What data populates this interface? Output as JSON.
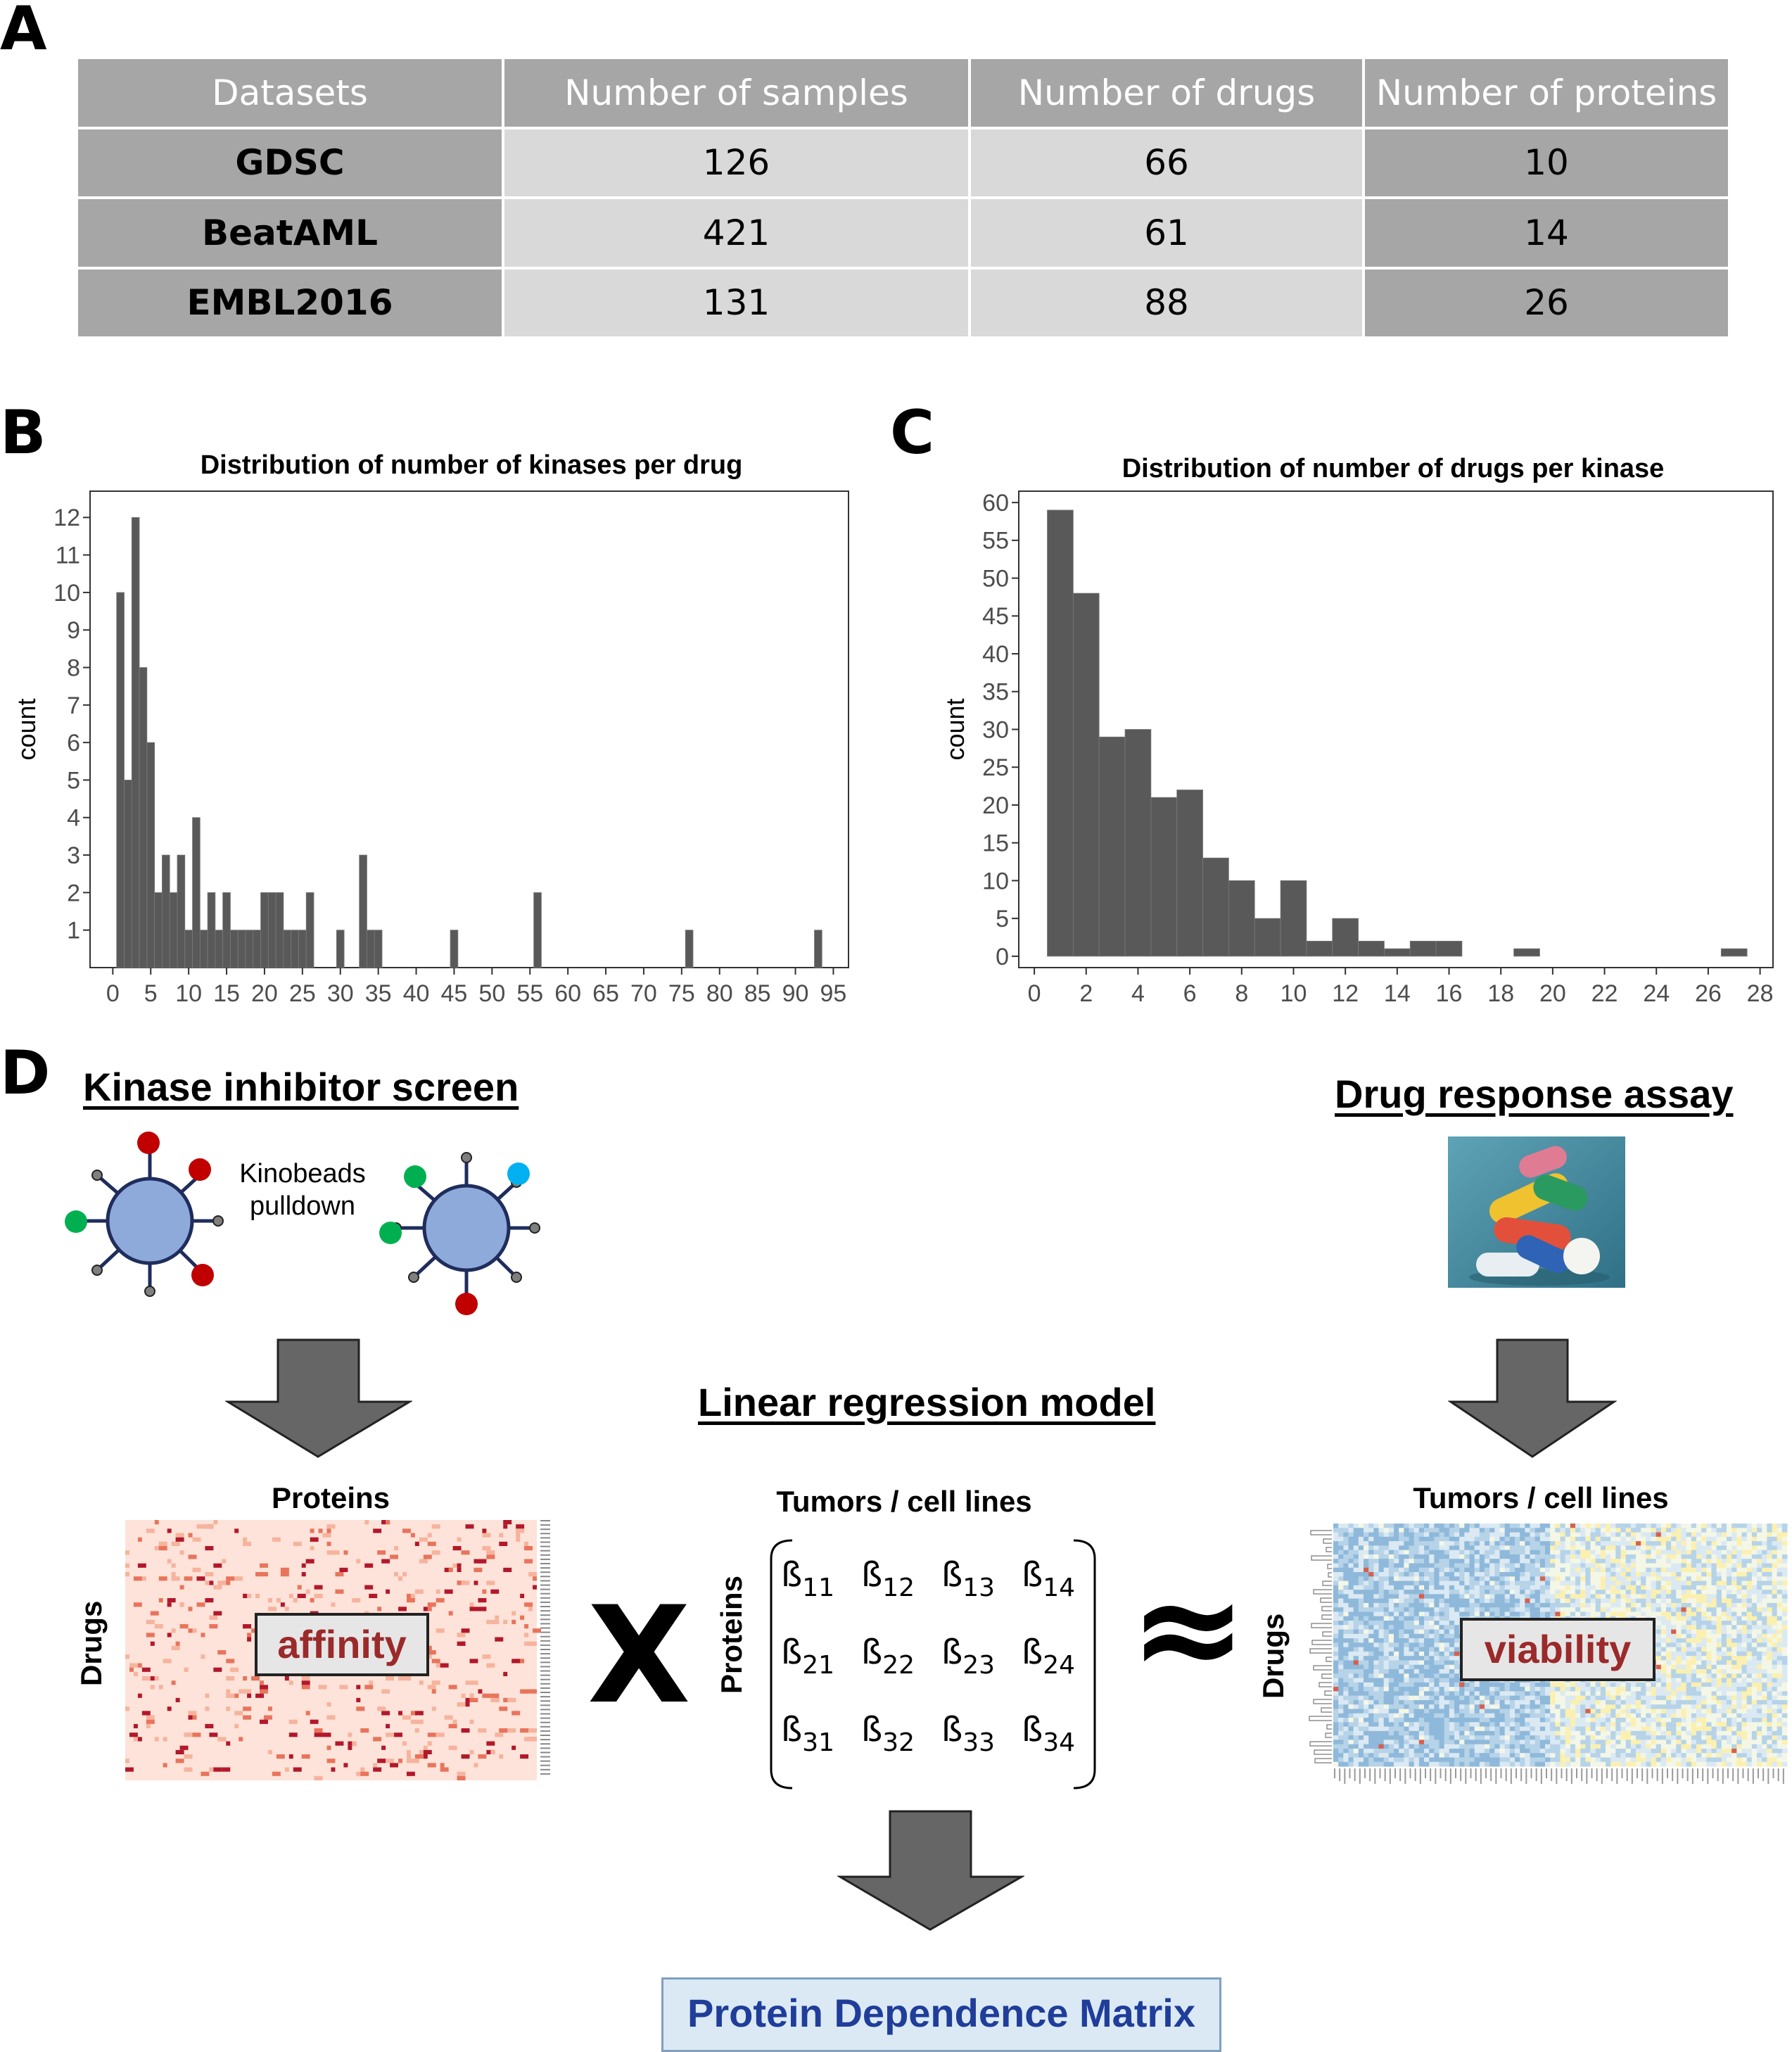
{
  "panel_letters": {
    "a": "A",
    "b": "B",
    "c": "C",
    "d": "D"
  },
  "table": {
    "headers": [
      "Datasets",
      "Number of samples",
      "Number of drugs",
      "Number of proteins"
    ],
    "rows": [
      [
        "GDSC",
        "126",
        "66",
        "10"
      ],
      [
        "BeatAML",
        "421",
        "61",
        "14"
      ],
      [
        "EMBL2016",
        "131",
        "88",
        "26"
      ]
    ]
  },
  "chart_data": [
    {
      "type": "bar",
      "title": "Distribution of number of kinases per drug",
      "xlabel": "",
      "ylabel": "count",
      "x_ticks": [
        "0",
        "5",
        "10",
        "15",
        "20",
        "25",
        "30",
        "35",
        "40",
        "45",
        "50",
        "55",
        "60",
        "65",
        "70",
        "75",
        "80",
        "85",
        "90",
        "95"
      ],
      "y_ticks": [
        "1",
        "2",
        "3",
        "4",
        "5",
        "6",
        "7",
        "8",
        "9",
        "10",
        "11",
        "12"
      ],
      "xlim": [
        -3,
        97
      ],
      "ylim": [
        0,
        12.7
      ],
      "bins": [
        {
          "x": 1,
          "count": 10
        },
        {
          "x": 2,
          "count": 5
        },
        {
          "x": 3,
          "count": 12
        },
        {
          "x": 4,
          "count": 8
        },
        {
          "x": 5,
          "count": 6
        },
        {
          "x": 6,
          "count": 2
        },
        {
          "x": 7,
          "count": 3
        },
        {
          "x": 8,
          "count": 2
        },
        {
          "x": 9,
          "count": 3
        },
        {
          "x": 10,
          "count": 1
        },
        {
          "x": 11,
          "count": 4
        },
        {
          "x": 12,
          "count": 1
        },
        {
          "x": 13,
          "count": 2
        },
        {
          "x": 14,
          "count": 1
        },
        {
          "x": 15,
          "count": 2
        },
        {
          "x": 16,
          "count": 1
        },
        {
          "x": 17,
          "count": 1
        },
        {
          "x": 18,
          "count": 1
        },
        {
          "x": 19,
          "count": 1
        },
        {
          "x": 20,
          "count": 2
        },
        {
          "x": 21,
          "count": 2
        },
        {
          "x": 22,
          "count": 2
        },
        {
          "x": 23,
          "count": 1
        },
        {
          "x": 24,
          "count": 1
        },
        {
          "x": 25,
          "count": 1
        },
        {
          "x": 26,
          "count": 2
        },
        {
          "x": 30,
          "count": 1
        },
        {
          "x": 33,
          "count": 3
        },
        {
          "x": 34,
          "count": 1
        },
        {
          "x": 35,
          "count": 1
        },
        {
          "x": 45,
          "count": 1
        },
        {
          "x": 56,
          "count": 2
        },
        {
          "x": 76,
          "count": 1
        },
        {
          "x": 93,
          "count": 1
        }
      ],
      "bin_width": 1,
      "grid": false
    },
    {
      "type": "bar",
      "title": "Distribution of number of drugs per kinase",
      "xlabel": "",
      "ylabel": "count",
      "x_ticks": [
        "0",
        "2",
        "4",
        "6",
        "8",
        "10",
        "12",
        "14",
        "16",
        "18",
        "20",
        "22",
        "24",
        "26",
        "28"
      ],
      "y_ticks": [
        "0",
        "5",
        "10",
        "15",
        "20",
        "25",
        "30",
        "35",
        "40",
        "45",
        "50",
        "55",
        "60"
      ],
      "xlim": [
        -0.6,
        28.5
      ],
      "ylim": [
        -1.5,
        61.5
      ],
      "bins": [
        {
          "x": 1,
          "count": 59
        },
        {
          "x": 2,
          "count": 48
        },
        {
          "x": 3,
          "count": 29
        },
        {
          "x": 4,
          "count": 30
        },
        {
          "x": 5,
          "count": 21
        },
        {
          "x": 6,
          "count": 22
        },
        {
          "x": 7,
          "count": 13
        },
        {
          "x": 8,
          "count": 10
        },
        {
          "x": 9,
          "count": 5
        },
        {
          "x": 10,
          "count": 10
        },
        {
          "x": 11,
          "count": 2
        },
        {
          "x": 12,
          "count": 5
        },
        {
          "x": 13,
          "count": 2
        },
        {
          "x": 14,
          "count": 1
        },
        {
          "x": 15,
          "count": 2
        },
        {
          "x": 16,
          "count": 2
        },
        {
          "x": 19,
          "count": 1
        },
        {
          "x": 27,
          "count": 1
        }
      ],
      "bin_width": 1,
      "grid": false
    }
  ],
  "section_d": {
    "kinase_screen": "Kinase inhibitor screen",
    "kinobeads": "Kinobeads",
    "pulldown": "pulldown",
    "drug_response": "Drug response assay",
    "linear_model": "Linear regression model",
    "left_top_label": "Proteins",
    "left_side_label": "Drugs",
    "affinity": "affinity",
    "multiply": "X",
    "middle_top_label": "Tumors / cell lines",
    "middle_side_label": "Proteins",
    "approx": "≈",
    "right_top_label": "Tumors / cell lines",
    "right_side_label": "Drugs",
    "viability": "viability",
    "result": "Protein Dependence Matrix",
    "beta_symbol": "ß",
    "matrix_indices": [
      [
        "11",
        "12",
        "13",
        "14"
      ],
      [
        "21",
        "22",
        "23",
        "24"
      ],
      [
        "31",
        "32",
        "33",
        "34"
      ]
    ]
  },
  "colors": {
    "table_dark": "#a6a6a6",
    "table_light": "#d9d9d9",
    "bar": "#595959",
    "arrow": "#666666",
    "bead_fill": "#8eaadb",
    "bead_stroke": "#1f2d5c",
    "ligand_red": "#c00000",
    "ligand_green": "#00b050",
    "ligand_blue": "#00b0f0",
    "affinity_bg": "#fde3d9",
    "affinity_dot": "#b2182b",
    "viability_blue": "#9ec3e0",
    "viability_yellow": "#fbf7d5",
    "result_text": "#1f3d99",
    "box_text": "#9b2a2a"
  }
}
